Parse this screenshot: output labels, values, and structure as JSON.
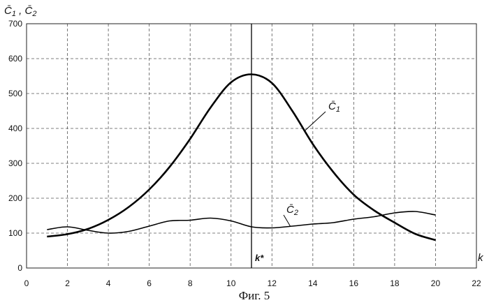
{
  "chart_data": {
    "type": "line",
    "ylabel": "C̄1 , C̄2",
    "xlabel": "k",
    "caption": "Фиг. 5",
    "xlim": [
      0,
      22
    ],
    "ylim": [
      0,
      700
    ],
    "xticks": [
      0,
      2,
      4,
      6,
      8,
      10,
      12,
      14,
      16,
      18,
      20,
      22
    ],
    "yticks": [
      0,
      100,
      200,
      300,
      400,
      500,
      600,
      700
    ],
    "grid": "dashed",
    "marker": {
      "x": 11,
      "label": "k*"
    },
    "line_color": "#000000",
    "series": [
      {
        "name": "C̄1",
        "x": [
          1,
          2,
          3,
          4,
          5,
          6,
          7,
          8,
          9,
          10,
          11,
          12,
          13,
          14,
          15,
          16,
          17,
          18,
          19,
          20
        ],
        "values": [
          90,
          97,
          112,
          138,
          175,
          225,
          290,
          370,
          460,
          532,
          555,
          530,
          450,
          355,
          275,
          210,
          165,
          130,
          98,
          80
        ]
      },
      {
        "name": "C̄2",
        "x": [
          1,
          2,
          3,
          4,
          5,
          6,
          7,
          8,
          9,
          10,
          11,
          12,
          13,
          14,
          15,
          16,
          17,
          18,
          19,
          20
        ],
        "values": [
          110,
          118,
          108,
          100,
          105,
          120,
          135,
          137,
          143,
          135,
          118,
          115,
          120,
          126,
          130,
          140,
          147,
          158,
          162,
          152
        ]
      }
    ],
    "annotations": [
      {
        "text": "C̄1",
        "series": "C̄1"
      },
      {
        "text": "C̄2",
        "series": "C̄2"
      }
    ]
  }
}
